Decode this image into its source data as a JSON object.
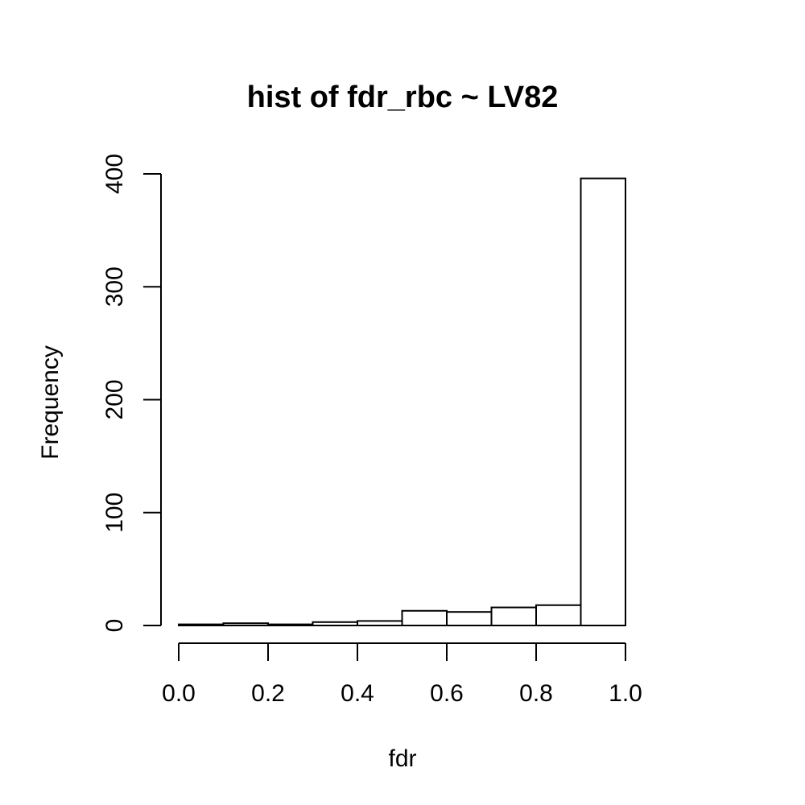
{
  "chart_data": {
    "type": "bar",
    "title": "hist of fdr_rbc ~ LV82",
    "xlabel": "fdr",
    "ylabel": "Frequency",
    "bins": [
      [
        0.0,
        0.1
      ],
      [
        0.1,
        0.2
      ],
      [
        0.2,
        0.3
      ],
      [
        0.3,
        0.4
      ],
      [
        0.4,
        0.5
      ],
      [
        0.5,
        0.6
      ],
      [
        0.6,
        0.7
      ],
      [
        0.7,
        0.8
      ],
      [
        0.8,
        0.9
      ],
      [
        0.9,
        1.0
      ]
    ],
    "values": [
      1,
      2,
      1,
      3,
      4,
      13,
      12,
      16,
      18,
      396
    ],
    "xlim": [
      0.0,
      1.0
    ],
    "ylim": [
      0,
      400
    ],
    "x_ticks": [
      "0.0",
      "0.2",
      "0.4",
      "0.6",
      "0.8",
      "1.0"
    ],
    "y_ticks": [
      "0",
      "100",
      "200",
      "300",
      "400"
    ],
    "grid": false,
    "legend": "none",
    "colors": {
      "bar_fill": "#ffffff",
      "bar_stroke": "#000000"
    }
  }
}
